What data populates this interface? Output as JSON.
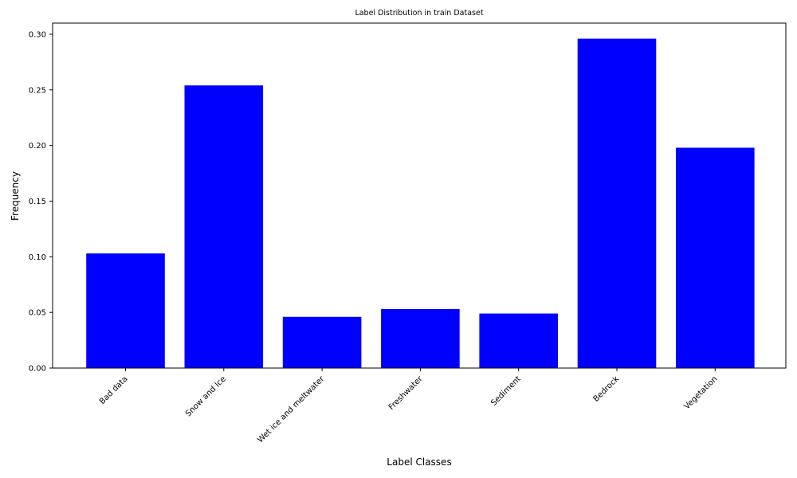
{
  "chart_data": {
    "type": "bar",
    "title": "Label Distribution in train Dataset",
    "xlabel": "Label Classes",
    "ylabel": "Frequency",
    "categories": [
      "Bad data",
      "Snow and Ice",
      "Wet ice and meltwater",
      "Freshwater",
      "Sediment",
      "Bedrock",
      "Vegetation"
    ],
    "values": [
      0.103,
      0.254,
      0.046,
      0.053,
      0.049,
      0.296,
      0.198
    ],
    "ylim": [
      0,
      0.31
    ],
    "yticks": [
      0.0,
      0.05,
      0.1,
      0.15,
      0.2,
      0.25,
      0.3
    ],
    "ytick_labels": [
      "0.00",
      "0.05",
      "0.10",
      "0.15",
      "0.20",
      "0.25",
      "0.30"
    ],
    "bar_color": "#0000ff",
    "grid": false,
    "legend": "none"
  }
}
